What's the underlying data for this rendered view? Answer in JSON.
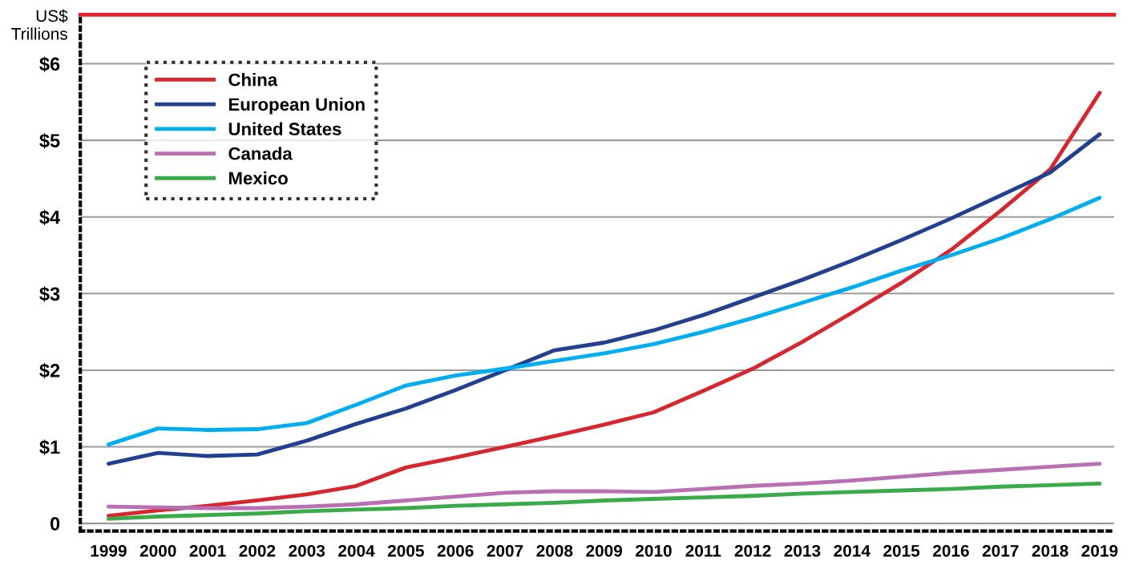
{
  "chart_data": {
    "type": "line",
    "ylabel": "US$\nTrillions",
    "x": [
      1999,
      2000,
      2001,
      2002,
      2003,
      2004,
      2005,
      2006,
      2007,
      2008,
      2009,
      2010,
      2011,
      2012,
      2013,
      2014,
      2015,
      2016,
      2017,
      2018,
      2019
    ],
    "series": [
      {
        "name": "China",
        "color": "#d7262e",
        "values": [
          0.1,
          0.17,
          0.23,
          0.3,
          0.38,
          0.49,
          0.73,
          0.86,
          1.0,
          1.14,
          1.29,
          1.45,
          1.73,
          2.02,
          2.37,
          2.75,
          3.14,
          3.57,
          4.08,
          4.62,
          5.62
        ]
      },
      {
        "name": "European Union",
        "color": "#233f8f",
        "values": [
          0.78,
          0.92,
          0.88,
          0.9,
          1.08,
          1.3,
          1.5,
          1.74,
          2.0,
          2.26,
          2.36,
          2.52,
          2.72,
          2.95,
          3.18,
          3.43,
          3.7,
          3.98,
          4.28,
          4.58,
          5.08
        ]
      },
      {
        "name": "United States",
        "color": "#00aeef",
        "values": [
          1.03,
          1.24,
          1.22,
          1.23,
          1.31,
          1.55,
          1.8,
          1.93,
          2.02,
          2.12,
          2.22,
          2.34,
          2.5,
          2.68,
          2.88,
          3.08,
          3.3,
          3.5,
          3.72,
          3.97,
          4.25
        ]
      },
      {
        "name": "Canada",
        "color": "#b86fb3",
        "values": [
          0.22,
          0.21,
          0.2,
          0.2,
          0.22,
          0.25,
          0.3,
          0.35,
          0.4,
          0.42,
          0.42,
          0.41,
          0.45,
          0.49,
          0.52,
          0.56,
          0.61,
          0.66,
          0.7,
          0.74,
          0.78
        ]
      },
      {
        "name": "Mexico",
        "color": "#3aab49",
        "values": [
          0.06,
          0.09,
          0.11,
          0.13,
          0.16,
          0.18,
          0.2,
          0.23,
          0.25,
          0.27,
          0.3,
          0.32,
          0.34,
          0.36,
          0.39,
          0.41,
          0.43,
          0.45,
          0.48,
          0.5,
          0.52
        ]
      }
    ],
    "xlim": [
      1998.43,
      2019.29
    ],
    "xticks": [
      1999,
      2000,
      2001,
      2002,
      2003,
      2004,
      2005,
      2006,
      2007,
      2008,
      2009,
      2010,
      2011,
      2012,
      2013,
      2014,
      2015,
      2016,
      2017,
      2018,
      2019
    ],
    "ylim": [
      -0.1,
      6.64
    ],
    "yticks": [
      {
        "value": 0,
        "label": "0"
      },
      {
        "value": 1,
        "label": "$1"
      },
      {
        "value": 2,
        "label": "$2"
      },
      {
        "value": 3,
        "label": "$3"
      },
      {
        "value": 4,
        "label": "$4"
      },
      {
        "value": 5,
        "label": "$5"
      },
      {
        "value": 6,
        "label": "$6"
      }
    ],
    "ref_lines": [
      {
        "axis": "y",
        "value": 6.64,
        "color": "#e3222b"
      }
    ],
    "grid": "y",
    "legend": "top left",
    "marker": "none",
    "line_style": "solid"
  }
}
